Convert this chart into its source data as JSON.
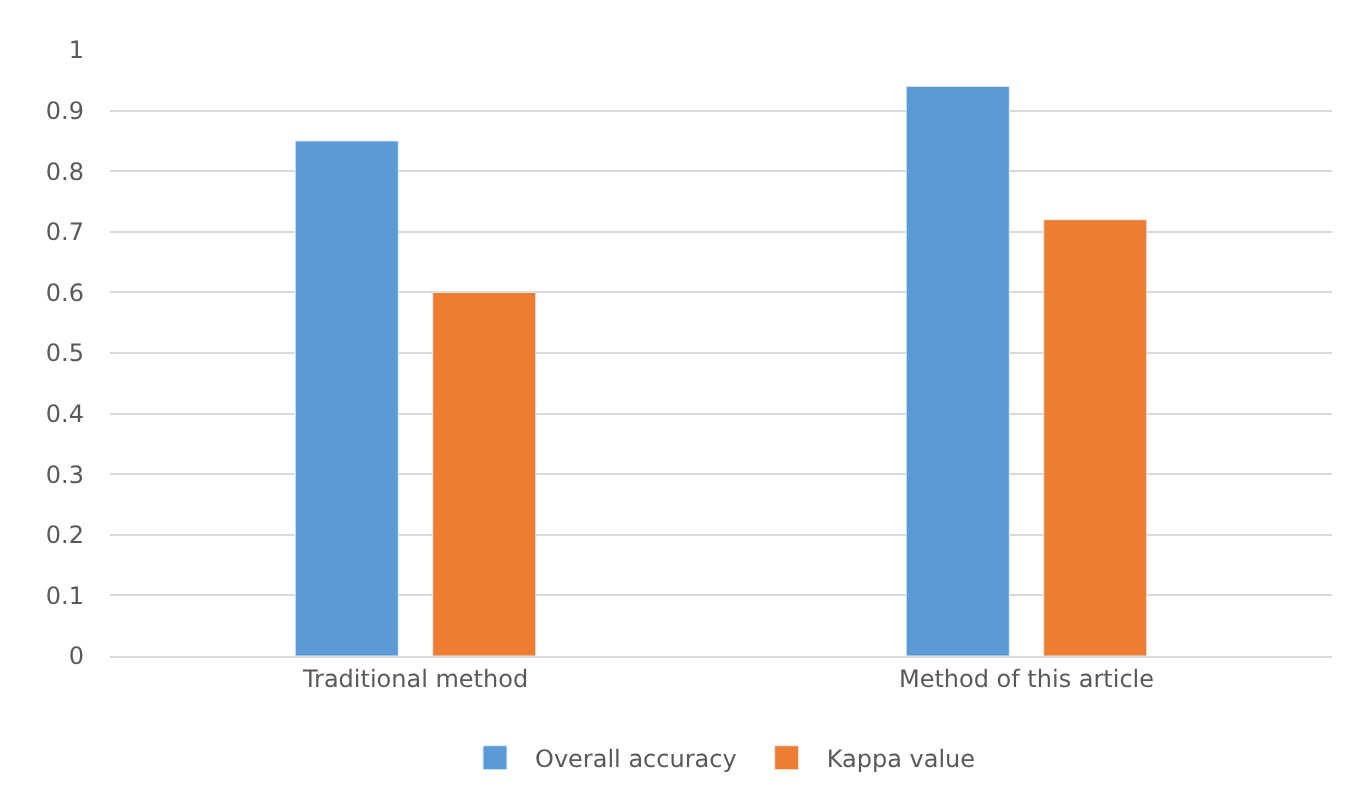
{
  "chart_data": {
    "type": "bar",
    "categories": [
      "Traditional method",
      "Method of this article"
    ],
    "series": [
      {
        "name": "Overall accuracy",
        "color": "#5b9bd5",
        "values": [
          0.85,
          0.94
        ]
      },
      {
        "name": "Kappa value",
        "color": "#ed7d31",
        "values": [
          0.6,
          0.72
        ]
      }
    ],
    "ylim": [
      0,
      1
    ],
    "yticks": [
      0,
      0.1,
      0.2,
      0.3,
      0.4,
      0.5,
      0.6,
      0.7,
      0.8,
      0.9,
      1
    ],
    "grid": "y",
    "legend": "bottom"
  }
}
